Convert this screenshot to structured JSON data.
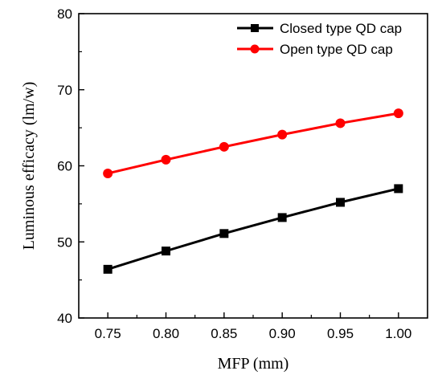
{
  "chart_data": {
    "type": "line",
    "xlabel": "MFP (mm)",
    "ylabel": "Luminous efficacy (lm/w)",
    "x": [
      0.75,
      0.8,
      0.85,
      0.9,
      0.95,
      1.0
    ],
    "x_tick_labels": [
      "0.75",
      "0.80",
      "0.85",
      "0.90",
      "0.95",
      "1.00"
    ],
    "xlim": [
      0.725,
      1.025
    ],
    "ylim": [
      40,
      80
    ],
    "y_ticks": [
      40,
      50,
      60,
      70,
      80
    ],
    "grid": false,
    "legend_position": "top-right",
    "series": [
      {
        "name": "Closed type QD cap",
        "color": "#000000",
        "marker": "square",
        "values": [
          46.4,
          48.8,
          51.1,
          53.2,
          55.2,
          57.0
        ]
      },
      {
        "name": "Open type QD cap",
        "color": "#ff0000",
        "marker": "circle",
        "values": [
          59.0,
          60.8,
          62.5,
          64.1,
          65.6,
          66.9
        ]
      }
    ]
  }
}
